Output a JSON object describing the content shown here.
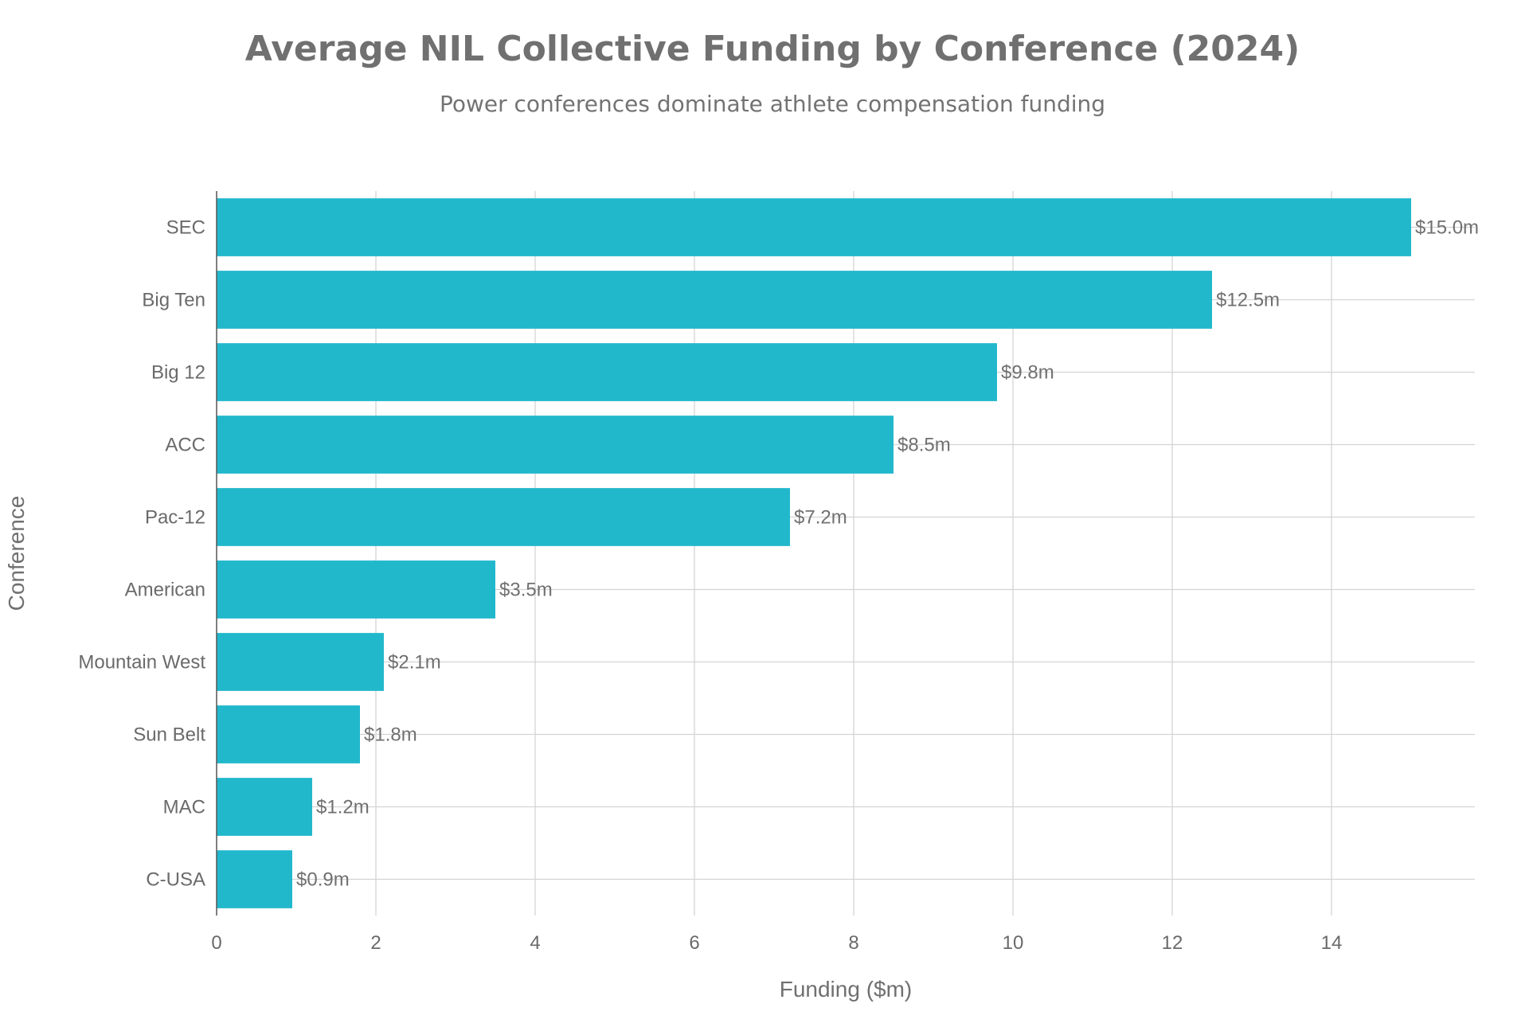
{
  "chart_data": {
    "type": "bar",
    "orientation": "horizontal",
    "title": "Average NIL Collective Funding by Conference (2024)",
    "subtitle": "Power conferences dominate athlete compensation funding",
    "xlabel": "Funding ($m)",
    "ylabel": "Conference",
    "categories": [
      "SEC",
      "Big Ten",
      "Big 12",
      "ACC",
      "Pac-12",
      "American",
      "Mountain West",
      "Sun Belt",
      "MAC",
      "C-USA"
    ],
    "values": [
      15.0,
      12.5,
      9.8,
      8.5,
      7.2,
      3.5,
      2.1,
      1.8,
      1.2,
      0.95
    ],
    "value_labels": [
      "$15.0m",
      "$12.5m",
      "$9.8m",
      "$8.5m",
      "$7.2m",
      "$3.5m",
      "$2.1m",
      "$1.8m",
      "$1.2m",
      "$0.9m"
    ],
    "xlim": [
      0,
      15.8
    ],
    "x_ticks": [
      0,
      2,
      4,
      6,
      8,
      10,
      12,
      14
    ],
    "x_tick_labels": [
      "0",
      "2",
      "4",
      "6",
      "8",
      "10",
      "12",
      "14"
    ],
    "grid": true,
    "colors": {
      "bar": "#22b8cc",
      "grid": "#d4d4d4",
      "axis": "#555555",
      "text": "#6a6a6a"
    }
  }
}
